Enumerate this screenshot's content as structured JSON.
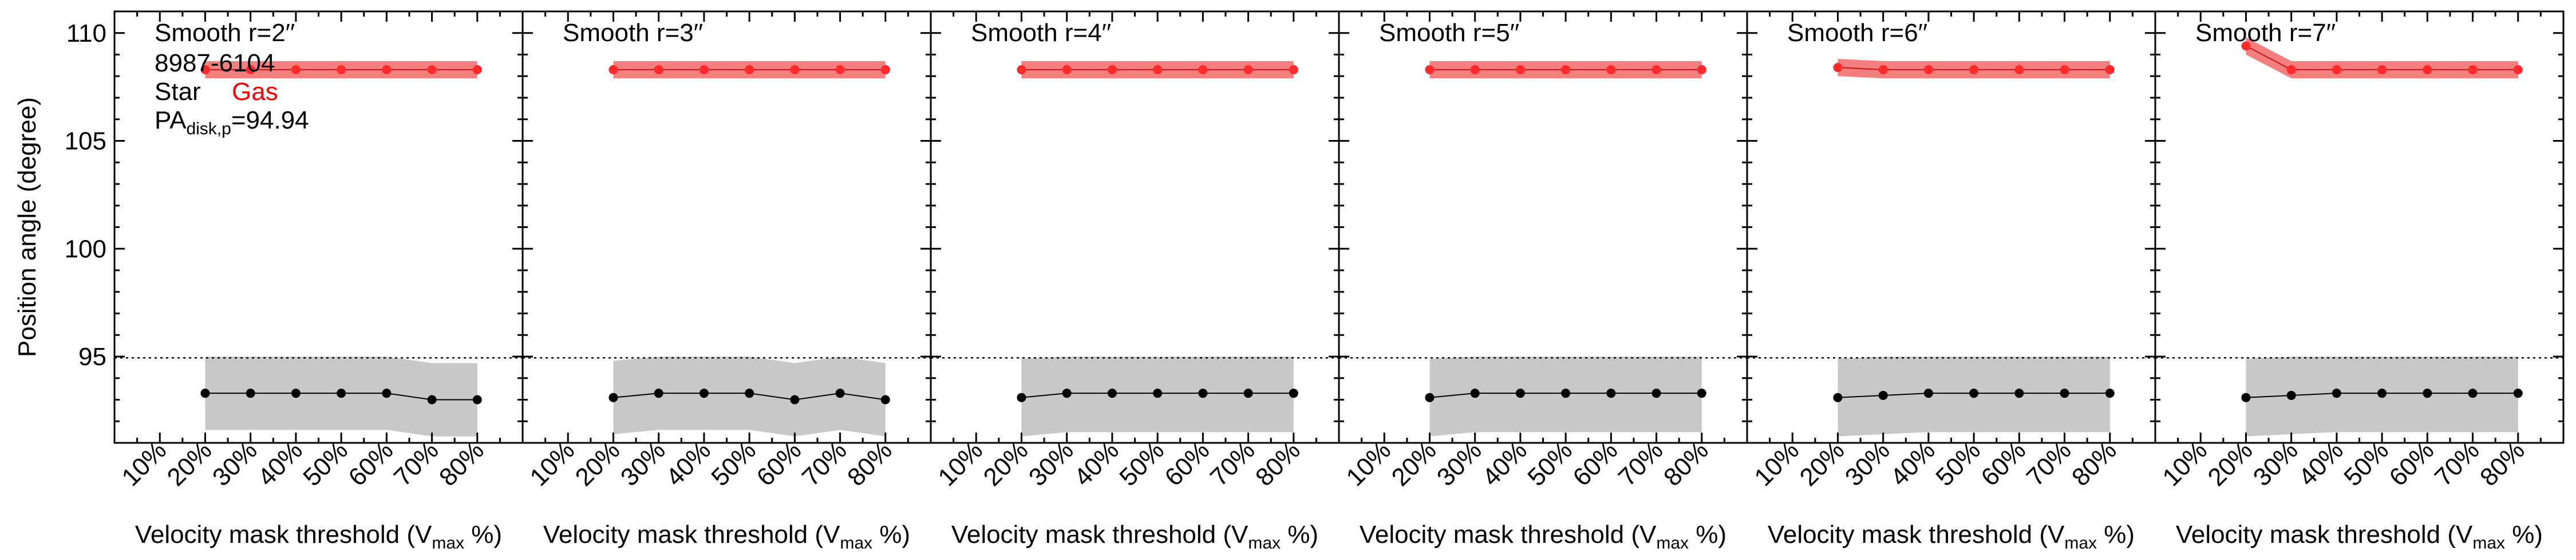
{
  "chart_data": {
    "type": "line",
    "ylabel": "Position angle (degree)",
    "xlabel_prefix": "Velocity mask threshold (V",
    "xlabel_sub": "max",
    "xlabel_suffix": " %)",
    "x_tick_labels": [
      "10%",
      "20%",
      "30%",
      "40%",
      "50%",
      "60%",
      "70%",
      "80%"
    ],
    "x_ticks": [
      10,
      20,
      30,
      40,
      50,
      60,
      70,
      80
    ],
    "xlim": [
      0,
      90
    ],
    "ylim": [
      91,
      111
    ],
    "y_ticks": [
      95,
      100,
      105,
      110
    ],
    "y_tick_labels": [
      "95",
      "100",
      "105",
      "110"
    ],
    "reference_line": {
      "value": 94.94,
      "style": "dotted"
    },
    "galaxy_id": "8987-6104",
    "pa_label_main": "PA",
    "pa_label_sub": "disk,p",
    "pa_label_value": "=94.94",
    "legend": [
      {
        "name": "Star",
        "color": "#000000"
      },
      {
        "name": "Gas",
        "color": "#ff0000"
      }
    ],
    "colors": {
      "star": "#000000",
      "star_band": "#c8c8c8",
      "gas": "#ff2a2a",
      "gas_band": "#f47f7f"
    },
    "grid": false,
    "panels": [
      {
        "title": "Smooth r=2′′",
        "x": [
          20,
          30,
          40,
          50,
          60,
          70,
          80
        ],
        "gas": {
          "values": [
            108.3,
            108.3,
            108.3,
            108.3,
            108.3,
            108.3,
            108.3
          ],
          "err": [
            0.4,
            0.4,
            0.4,
            0.4,
            0.4,
            0.4,
            0.4
          ]
        },
        "star": {
          "values": [
            93.3,
            93.3,
            93.3,
            93.3,
            93.3,
            93.0,
            93.0
          ],
          "lower": [
            91.6,
            91.6,
            91.6,
            91.6,
            91.6,
            91.3,
            91.3
          ],
          "upper": [
            95.0,
            95.0,
            95.0,
            95.0,
            95.0,
            94.7,
            94.7
          ]
        }
      },
      {
        "title": "Smooth r=3′′",
        "x": [
          20,
          30,
          40,
          50,
          60,
          70,
          80
        ],
        "gas": {
          "values": [
            108.3,
            108.3,
            108.3,
            108.3,
            108.3,
            108.3,
            108.3
          ],
          "err": [
            0.4,
            0.4,
            0.4,
            0.4,
            0.4,
            0.4,
            0.4
          ]
        },
        "star": {
          "values": [
            93.1,
            93.3,
            93.3,
            93.3,
            93.0,
            93.3,
            93.0
          ],
          "lower": [
            91.4,
            91.6,
            91.6,
            91.6,
            91.3,
            91.6,
            91.3
          ],
          "upper": [
            94.8,
            95.0,
            95.0,
            95.0,
            94.7,
            95.0,
            94.7
          ]
        }
      },
      {
        "title": "Smooth r=4′′",
        "x": [
          20,
          30,
          40,
          50,
          60,
          70,
          80
        ],
        "gas": {
          "values": [
            108.3,
            108.3,
            108.3,
            108.3,
            108.3,
            108.3,
            108.3
          ],
          "err": [
            0.4,
            0.4,
            0.4,
            0.4,
            0.4,
            0.4,
            0.4
          ]
        },
        "star": {
          "values": [
            93.1,
            93.3,
            93.3,
            93.3,
            93.3,
            93.3,
            93.3
          ],
          "lower": [
            91.3,
            91.5,
            91.5,
            91.5,
            91.5,
            91.5,
            91.5
          ],
          "upper": [
            94.9,
            95.0,
            95.0,
            95.0,
            95.0,
            95.0,
            95.0
          ]
        }
      },
      {
        "title": "Smooth r=5′′",
        "x": [
          20,
          30,
          40,
          50,
          60,
          70,
          80
        ],
        "gas": {
          "values": [
            108.3,
            108.3,
            108.3,
            108.3,
            108.3,
            108.3,
            108.3
          ],
          "err": [
            0.4,
            0.4,
            0.4,
            0.4,
            0.4,
            0.4,
            0.4
          ]
        },
        "star": {
          "values": [
            93.1,
            93.3,
            93.3,
            93.3,
            93.3,
            93.3,
            93.3
          ],
          "lower": [
            91.3,
            91.5,
            91.5,
            91.5,
            91.5,
            91.5,
            91.5
          ],
          "upper": [
            94.9,
            95.0,
            95.0,
            95.0,
            95.0,
            95.0,
            95.0
          ]
        }
      },
      {
        "title": "Smooth r=6′′",
        "x": [
          20,
          30,
          40,
          50,
          60,
          70,
          80
        ],
        "gas": {
          "values": [
            108.4,
            108.3,
            108.3,
            108.3,
            108.3,
            108.3,
            108.3
          ],
          "err": [
            0.4,
            0.4,
            0.4,
            0.4,
            0.4,
            0.4,
            0.4
          ]
        },
        "star": {
          "values": [
            93.1,
            93.2,
            93.3,
            93.3,
            93.3,
            93.3,
            93.3
          ],
          "lower": [
            91.3,
            91.4,
            91.5,
            91.5,
            91.5,
            91.5,
            91.5
          ],
          "upper": [
            94.9,
            95.0,
            95.0,
            95.0,
            95.0,
            95.0,
            95.0
          ]
        }
      },
      {
        "title": "Smooth r=7′′",
        "x": [
          20,
          30,
          40,
          50,
          60,
          70,
          80
        ],
        "gas": {
          "values": [
            109.4,
            108.3,
            108.3,
            108.3,
            108.3,
            108.3,
            108.3
          ],
          "err": [
            0.4,
            0.4,
            0.4,
            0.4,
            0.4,
            0.4,
            0.4
          ]
        },
        "star": {
          "values": [
            93.1,
            93.2,
            93.3,
            93.3,
            93.3,
            93.3,
            93.3
          ],
          "lower": [
            91.3,
            91.4,
            91.5,
            91.5,
            91.5,
            91.5,
            91.5
          ],
          "upper": [
            94.9,
            95.0,
            95.0,
            95.0,
            95.0,
            95.0,
            95.0
          ]
        }
      }
    ]
  }
}
